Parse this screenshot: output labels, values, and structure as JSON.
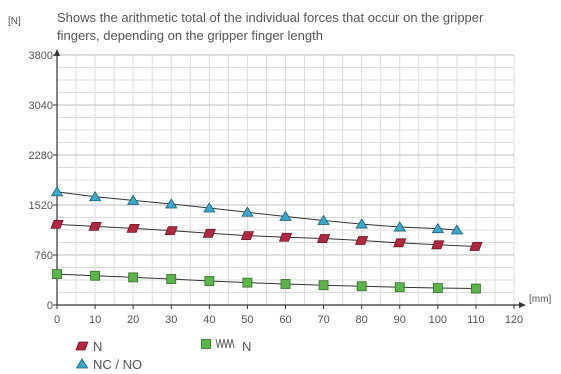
{
  "chart_data": {
    "type": "line",
    "title": [
      "Shows the arithmetic total of the individual forces that occur on the gripper",
      "fingers, depending on the gripper finger length"
    ],
    "ylabel": "[N]",
    "xlabel": "[mm]",
    "xlim": [
      0,
      120
    ],
    "ylim": [
      0,
      3800
    ],
    "xticks": [
      0,
      10,
      20,
      30,
      40,
      50,
      60,
      70,
      80,
      90,
      100,
      110,
      120
    ],
    "yticks": [
      0,
      760,
      1520,
      2280,
      3040,
      3800
    ],
    "grid": true,
    "series": [
      {
        "name": "N",
        "marker": "parallelogram",
        "color": "#b0273f",
        "x": [
          0,
          10,
          20,
          30,
          40,
          50,
          60,
          70,
          80,
          90,
          100,
          110
        ],
        "y": [
          1225,
          1195,
          1165,
          1130,
          1090,
          1055,
          1030,
          1010,
          980,
          945,
          915,
          890
        ]
      },
      {
        "name": "NC / NO",
        "marker": "triangle",
        "color": "#3aa8c9",
        "x": [
          0,
          10,
          20,
          30,
          40,
          50,
          60,
          70,
          80,
          90,
          100,
          105
        ],
        "y": [
          1720,
          1645,
          1590,
          1535,
          1475,
          1410,
          1345,
          1285,
          1230,
          1185,
          1160,
          1140
        ]
      },
      {
        "name": "N",
        "prefix_icon": "spring-icon",
        "marker": "square",
        "color": "#5cb54a",
        "x": [
          0,
          10,
          20,
          30,
          40,
          50,
          60,
          70,
          80,
          90,
          100,
          110
        ],
        "y": [
          470,
          445,
          420,
          395,
          365,
          340,
          320,
          300,
          285,
          270,
          258,
          250
        ]
      }
    ]
  }
}
